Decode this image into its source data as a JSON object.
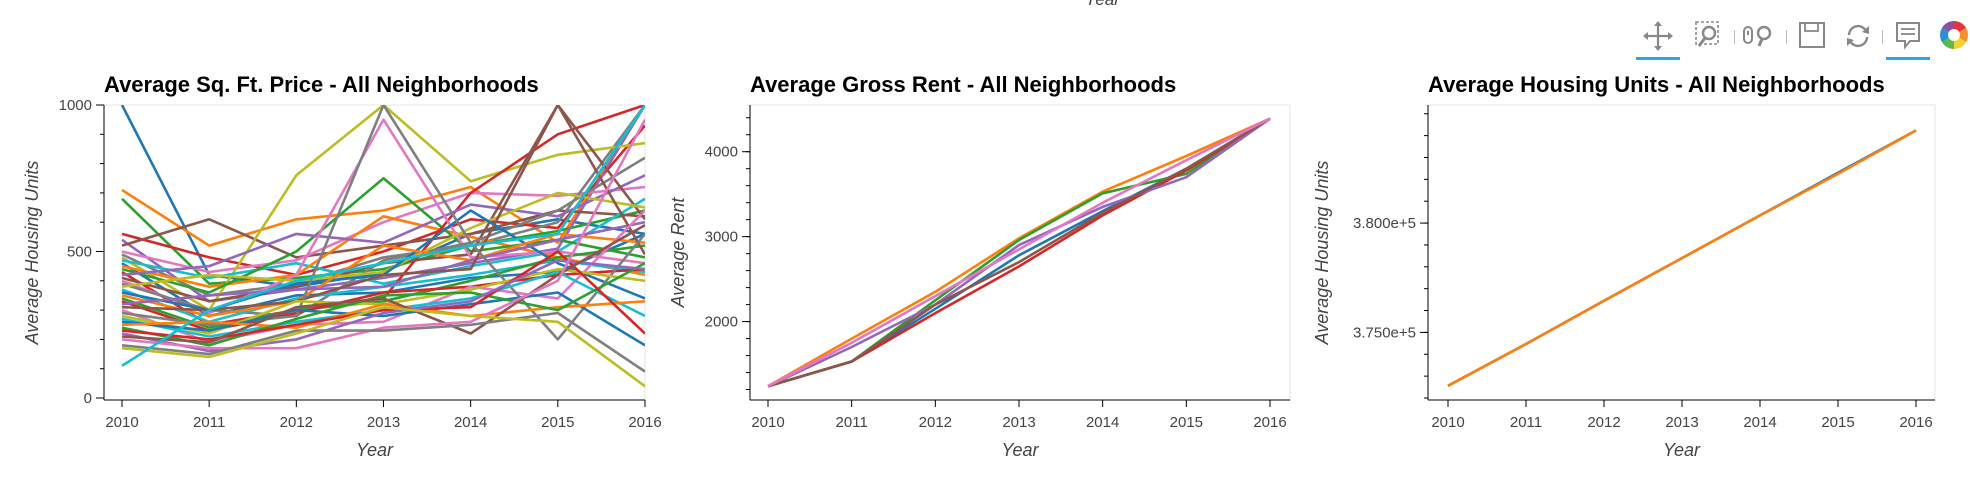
{
  "top_axis_label": "Year",
  "toolbar": {
    "tools": [
      {
        "name": "pan-tool-icon",
        "active": true
      },
      {
        "name": "box-zoom-tool-icon",
        "active": false
      },
      {
        "name": "wheel-zoom-tool-icon",
        "active": false
      },
      {
        "name": "save-tool-icon",
        "active": false
      },
      {
        "name": "reset-tool-icon",
        "active": false
      },
      {
        "name": "hover-tool-icon",
        "active": true
      },
      {
        "name": "bokeh-logo-icon",
        "active": false
      }
    ]
  },
  "colors": [
    "#1f77b4",
    "#ff7f0e",
    "#2ca02c",
    "#d62728",
    "#9467bd",
    "#8c564b",
    "#e377c2",
    "#7f7f7f",
    "#bcbd22",
    "#17becf"
  ],
  "chart_data": [
    {
      "type": "line",
      "title": "Average Sq. Ft. Price - All Neighborhoods",
      "xlabel": "Year",
      "ylabel": "Average Housing Units",
      "x": [
        2010,
        2011,
        2012,
        2013,
        2014,
        2015,
        2016
      ],
      "xlim": [
        2010,
        2016
      ],
      "ylim": [
        0,
        1000
      ],
      "yticks": [
        0,
        500,
        1000
      ],
      "grid": false,
      "series": [
        {
          "values": [
            1000,
            420,
            380,
            430,
            560,
            610,
            560
          ]
        },
        {
          "values": [
            710,
            520,
            610,
            640,
            720,
            530,
            1000
          ]
        },
        {
          "values": [
            680,
            390,
            410,
            440,
            520,
            570,
            640
          ]
        },
        {
          "values": [
            560,
            480,
            420,
            500,
            610,
            580,
            930
          ]
        },
        {
          "values": [
            540,
            330,
            370,
            410,
            460,
            510,
            1000
          ]
        },
        {
          "values": [
            520,
            610,
            480,
            520,
            560,
            640,
            620
          ]
        },
        {
          "values": [
            500,
            430,
            470,
            600,
            700,
            690,
            720
          ]
        },
        {
          "values": [
            490,
            350,
            390,
            480,
            520,
            600,
            1000
          ]
        },
        {
          "values": [
            480,
            300,
            760,
            1000,
            740,
            830,
            870
          ]
        },
        {
          "values": [
            470,
            410,
            460,
            390,
            450,
            500,
            680
          ]
        },
        {
          "values": [
            460,
            280,
            350,
            360,
            410,
            430,
            560
          ]
        },
        {
          "values": [
            450,
            380,
            420,
            620,
            550,
            480,
            420
          ]
        },
        {
          "values": [
            440,
            360,
            500,
            750,
            500,
            540,
            480
          ]
        },
        {
          "values": [
            430,
            250,
            300,
            340,
            700,
            900,
            1000
          ]
        },
        {
          "values": [
            420,
            450,
            560,
            530,
            660,
            620,
            760
          ]
        },
        {
          "values": [
            410,
            330,
            380,
            460,
            490,
            1000,
            610
          ]
        },
        {
          "values": [
            400,
            290,
            420,
            950,
            480,
            500,
            460
          ]
        },
        {
          "values": [
            390,
            300,
            280,
            470,
            530,
            640,
            820
          ]
        },
        {
          "values": [
            380,
            420,
            400,
            430,
            580,
            700,
            650
          ]
        },
        {
          "values": [
            370,
            260,
            340,
            380,
            420,
            470,
            430
          ]
        },
        {
          "values": [
            360,
            300,
            390,
            420,
            640,
            460,
            340
          ]
        },
        {
          "values": [
            350,
            280,
            330,
            520,
            470,
            560,
            530
          ]
        },
        {
          "values": [
            340,
            240,
            300,
            330,
            400,
            480,
            520
          ]
        },
        {
          "values": [
            330,
            230,
            290,
            360,
            380,
            420,
            440
          ]
        },
        {
          "values": [
            320,
            350,
            370,
            380,
            470,
            540,
            600
          ]
        },
        {
          "values": [
            310,
            300,
            330,
            420,
            440,
            1000,
            490
          ]
        },
        {
          "values": [
            300,
            190,
            250,
            260,
            380,
            340,
            640
          ]
        },
        {
          "values": [
            290,
            250,
            280,
            1000,
            530,
            200,
            560
          ]
        },
        {
          "values": [
            280,
            220,
            330,
            320,
            370,
            440,
            400
          ]
        },
        {
          "values": [
            270,
            210,
            260,
            300,
            340,
            430,
            280
          ]
        },
        {
          "values": [
            260,
            230,
            300,
            280,
            320,
            360,
            180
          ]
        },
        {
          "values": [
            250,
            260,
            240,
            320,
            280,
            310,
            330
          ]
        },
        {
          "values": [
            240,
            180,
            270,
            350,
            360,
            300,
            460
          ]
        },
        {
          "values": [
            230,
            200,
            250,
            300,
            310,
            500,
            220
          ]
        },
        {
          "values": [
            220,
            160,
            200,
            290,
            330,
            470,
            440
          ]
        },
        {
          "values": [
            210,
            190,
            310,
            340,
            220,
            420,
            590
          ]
        },
        {
          "values": [
            200,
            170,
            170,
            240,
            260,
            400,
            950
          ]
        },
        {
          "values": [
            180,
            150,
            230,
            230,
            250,
            290,
            90
          ]
        },
        {
          "values": [
            170,
            140,
            220,
            310,
            280,
            260,
            40
          ]
        },
        {
          "values": [
            110,
            300,
            400,
            460,
            520,
            560,
            1000
          ]
        }
      ]
    },
    {
      "type": "line",
      "title": "Average Gross Rent - All Neighborhoods",
      "xlabel": "Year",
      "ylabel": "Average Rent",
      "x": [
        2010,
        2011,
        2012,
        2013,
        2014,
        2015,
        2016
      ],
      "xlim": [
        2010,
        2016
      ],
      "ylim": [
        1100,
        4550
      ],
      "yticks": [
        2000,
        3000,
        4000
      ],
      "grid": false,
      "series": [
        {
          "values": [
            1239,
            1530,
            2150,
            2780,
            3300,
            3800,
            4390
          ]
        },
        {
          "values": [
            1239,
            1800,
            2350,
            2980,
            3530,
            3950,
            4390
          ]
        },
        {
          "values": [
            1239,
            1530,
            2250,
            2960,
            3510,
            3740,
            4390
          ]
        },
        {
          "values": [
            1239,
            1530,
            2100,
            2650,
            3250,
            3780,
            4390
          ]
        },
        {
          "values": [
            1239,
            1700,
            2200,
            2900,
            3350,
            3700,
            4390
          ]
        },
        {
          "values": [
            1239,
            1530,
            2200,
            2700,
            3280,
            3800,
            4390
          ]
        },
        {
          "values": [
            1239,
            1750,
            2300,
            2850,
            3400,
            3900,
            4390
          ]
        }
      ]
    },
    {
      "type": "line",
      "title": "Average Housing Units - All Neighborhoods",
      "xlabel": "Year",
      "ylabel": "Average Housing Units",
      "x": [
        2010,
        2011,
        2012,
        2013,
        2014,
        2015,
        2016
      ],
      "xlim": [
        2010,
        2016
      ],
      "ylim": [
        372000,
        385400
      ],
      "yticks": [
        375000,
        380000
      ],
      "ytick_labels": [
        "3.750e+5",
        "3.800e+5"
      ],
      "grid": false,
      "series": [
        {
          "values": [
            372560,
            374470,
            376450,
            378400,
            380350,
            382300,
            384240
          ]
        },
        {
          "values": [
            372560,
            374470,
            376450,
            378400,
            380350,
            382250,
            384240
          ]
        }
      ]
    }
  ]
}
